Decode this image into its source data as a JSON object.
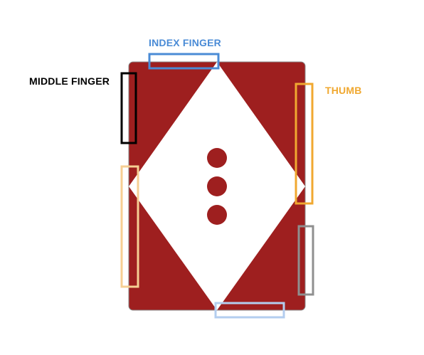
{
  "colors": {
    "background": "#ffffff",
    "card_fill": "#9e1f1f",
    "card_stroke": "#8a8a8a",
    "diamond": "#ffffff",
    "pips": "#9e1f1f"
  },
  "labels": {
    "index_finger": {
      "text": "INDEX FINGER",
      "color": "#4a8bd6"
    },
    "middle_finger": {
      "text": "MIDDLE FINGER",
      "color": "#000000"
    },
    "thumb": {
      "text": "THUMB",
      "color": "#f0a830"
    }
  },
  "grip_markers": [
    {
      "id": "index-finger",
      "name": "index-finger-grip-marker",
      "color": "#4a8bd6"
    },
    {
      "id": "middle-finger",
      "name": "middle-finger-grip-marker",
      "color": "#000000"
    },
    {
      "id": "thumb",
      "name": "thumb-grip-marker",
      "color": "#f0a830"
    },
    {
      "id": "left-lower",
      "name": "left-lower-grip-marker",
      "color": "#f6cf93"
    },
    {
      "id": "right-lower",
      "name": "right-lower-grip-marker",
      "color": "#8f8f8f"
    },
    {
      "id": "bottom",
      "name": "bottom-grip-marker",
      "color": "#b3cdef"
    }
  ],
  "pips": {
    "count": 3
  }
}
